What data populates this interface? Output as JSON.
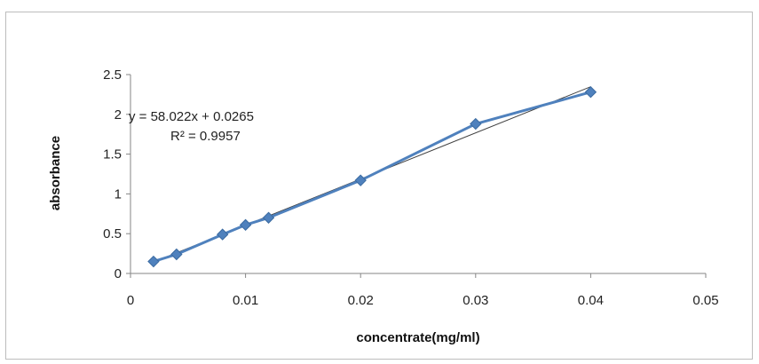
{
  "chart_data": {
    "type": "scatter",
    "title": "",
    "xlabel": "concentrate(mg/ml)",
    "ylabel": "absorbance",
    "xlim": [
      0,
      0.05
    ],
    "ylim": [
      0,
      2.5
    ],
    "x_ticks": [
      "0",
      "0.01",
      "0.02",
      "0.03",
      "0.04",
      "0.05"
    ],
    "y_ticks": [
      "0",
      "0.5",
      "1",
      "1.5",
      "2",
      "2.5"
    ],
    "grid": false,
    "legend": "none",
    "series": [
      {
        "x": [
          0.002,
          0.004,
          0.008,
          0.01,
          0.012,
          0.02,
          0.03,
          0.04
        ],
        "y": [
          0.15,
          0.24,
          0.49,
          0.61,
          0.7,
          1.17,
          1.88,
          2.28
        ],
        "color": "#4f81bd",
        "marker": "diamond",
        "line": true
      }
    ],
    "trendline": {
      "type": "linear",
      "slope": 58.022,
      "intercept": 0.0265,
      "color": "#404040"
    },
    "annotations": {
      "equation": "y = 58.022x + 0.0265",
      "r_squared": "R² = 0.9957"
    }
  }
}
